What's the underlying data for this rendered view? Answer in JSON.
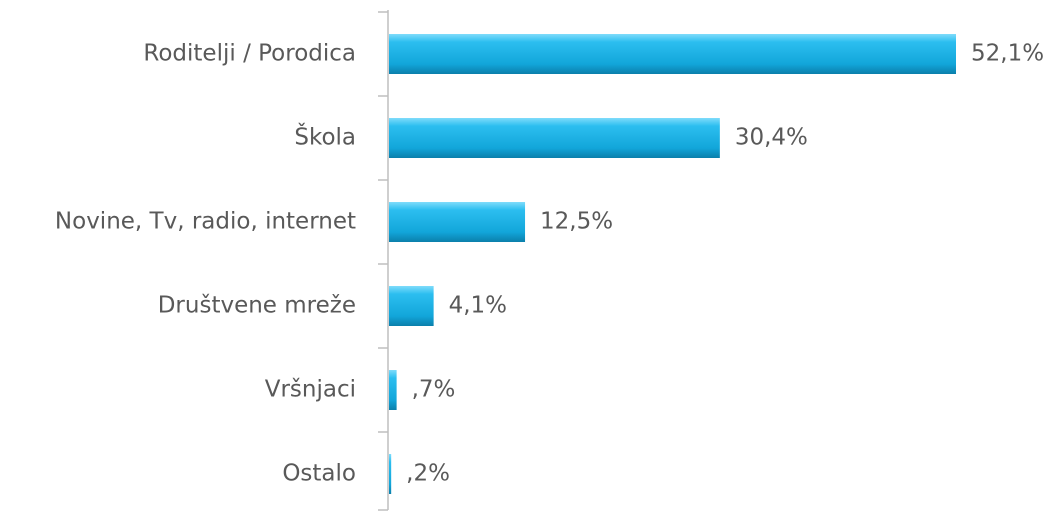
{
  "chart_data": {
    "type": "bar",
    "orientation": "horizontal",
    "categories": [
      "Roditelji / Porodica",
      "Škola",
      "Novine, Tv, radio, internet",
      "Društvene mreže",
      "Vršnjaci",
      "Ostalo"
    ],
    "values": [
      52.1,
      30.4,
      12.5,
      4.1,
      0.7,
      0.2
    ],
    "value_labels": [
      "52,1%",
      "30,4%",
      "12,5%",
      "4,1%",
      ",7%",
      ",2%"
    ],
    "color": "#1fb4e6"
  }
}
